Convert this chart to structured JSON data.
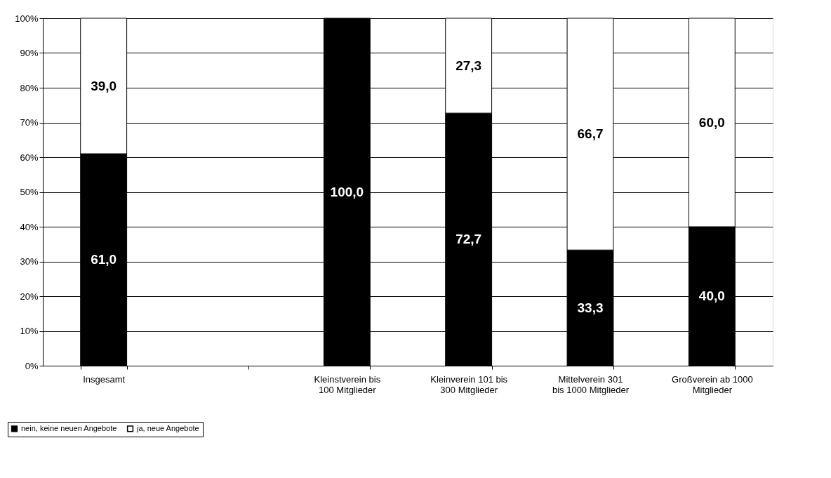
{
  "chart_data": {
    "type": "bar",
    "stacked": true,
    "categories": [
      "Insgesamt",
      null,
      "Kleinstverein bis 100 Mitglieder",
      "Kleinverein 101 bis 300 Mitglieder",
      "Mittelverein 301 bis 1000 Mitglieder",
      "Großverein ab 1000 Mitglieder"
    ],
    "series": [
      {
        "name": "nein, keine neuen Angebote",
        "color": "#000000",
        "values": [
          61.0,
          null,
          100.0,
          72.7,
          33.3,
          40.0
        ],
        "value_labels": [
          "61,0",
          null,
          "100,0",
          "72,7",
          "33,3",
          "40,0"
        ]
      },
      {
        "name": "ja, neue Angebote",
        "color": "#ffffff",
        "values": [
          39.0,
          null,
          0,
          27.3,
          66.7,
          60.0
        ],
        "value_labels": [
          "39,0",
          null,
          null,
          "27,3",
          "66,7",
          "60,0"
        ]
      }
    ],
    "ylim": [
      0,
      100
    ],
    "yticks": [
      {
        "value": 0,
        "label": "0%"
      },
      {
        "value": 10,
        "label": "10%"
      },
      {
        "value": 20,
        "label": "20%"
      },
      {
        "value": 30,
        "label": "30%"
      },
      {
        "value": 40,
        "label": "40%"
      },
      {
        "value": 50,
        "label": "50%"
      },
      {
        "value": 60,
        "label": "60%"
      },
      {
        "value": 70,
        "label": "70%"
      },
      {
        "value": 80,
        "label": "80%"
      },
      {
        "value": 90,
        "label": "90%"
      },
      {
        "value": 100,
        "label": "100%"
      }
    ],
    "grid": "y",
    "legend": "bottom left"
  }
}
